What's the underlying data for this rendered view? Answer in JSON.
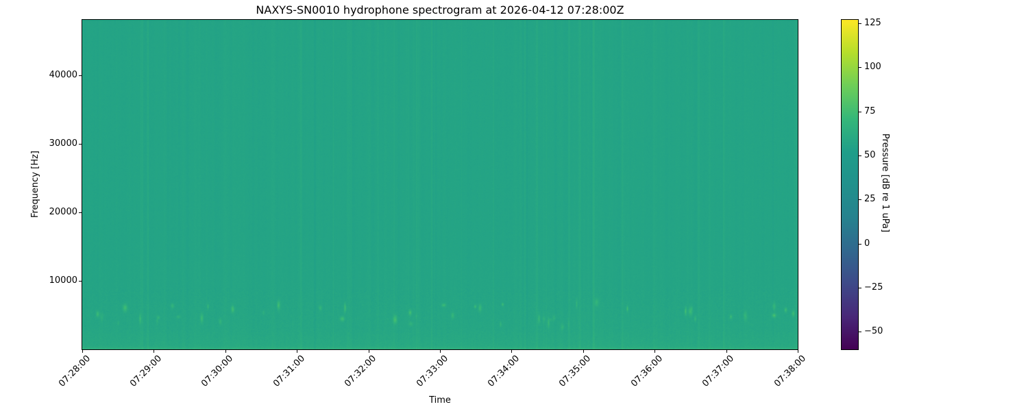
{
  "page": {
    "background": "#ffffff"
  },
  "chart_data": {
    "type": "heatmap",
    "title": "NAXYS-SN0010 hydrophone spectrogram at 2026-04-12 07:28:00Z",
    "xlabel": "Time",
    "ylabel": "Frequency [Hz]",
    "grid": false,
    "x_tick_labels": [
      "07:28:00",
      "07:29:00",
      "07:30:00",
      "07:31:00",
      "07:32:00",
      "07:33:00",
      "07:34:00",
      "07:35:00",
      "07:36:00",
      "07:37:00",
      "07:38:00"
    ],
    "y_tick_values": [
      10000,
      20000,
      30000,
      40000
    ],
    "y_axis_range_hz": [
      0,
      48100
    ],
    "x_axis_range": [
      "07:28:00",
      "07:38:00"
    ],
    "colorbar": {
      "label": "Pressure [dB re 1 uPa]",
      "tick_values": [
        125,
        100,
        75,
        50,
        25,
        0,
        -25,
        -50
      ],
      "vmin": -60,
      "vmax": 127,
      "colormap": "viridis",
      "colormap_stops": [
        {
          "t": 0.0,
          "hex": "#440154"
        },
        {
          "t": 0.1,
          "hex": "#482878"
        },
        {
          "t": 0.2,
          "hex": "#3e4a89"
        },
        {
          "t": 0.3,
          "hex": "#31688e"
        },
        {
          "t": 0.4,
          "hex": "#26828e"
        },
        {
          "t": 0.5,
          "hex": "#21918c"
        },
        {
          "t": 0.6,
          "hex": "#1f9e89"
        },
        {
          "t": 0.7,
          "hex": "#35b779"
        },
        {
          "t": 0.8,
          "hex": "#6ece58"
        },
        {
          "t": 0.9,
          "hex": "#b5de2b"
        },
        {
          "t": 1.0,
          "hex": "#fde725"
        }
      ]
    },
    "heatmap_model": {
      "seed": 1337,
      "base_db": 56.8,
      "band_below_hz": 13000,
      "band_boost_db": 0.5,
      "lowfreq_ramp_hz": 9000,
      "lowfreq_ramp_db": 1.8,
      "deep_ramp_hz": 3000,
      "deep_ramp_db": 1.6,
      "bottom_rows": 3,
      "bottom_boost_db": 2.8,
      "bottom_speckle_rows": 5,
      "bottom_speckle_db": 1.1,
      "column_noise_db": 0.9,
      "pixel_noise_db": 0.55,
      "lowfreq_pixel_noise_db": 1.0,
      "bright_column_events": 34,
      "bright_column_db": [
        1.2,
        3.6
      ],
      "edge_left_cols": 3,
      "edge_left_db": 1.8,
      "edge_right_cols": 6,
      "edge_right_db": 2.2,
      "blip_count": 42,
      "blip_freq_hz": [
        3400,
        7200
      ],
      "blip_db": [
        5,
        19
      ],
      "notable_blips": [
        {
          "col": 22,
          "row": 429,
          "db": 16
        },
        {
          "col": 201,
          "row": 440,
          "db": 10
        },
        {
          "col": 478,
          "row": 427,
          "db": 18
        },
        {
          "col": 540,
          "row": 431,
          "db": 13
        },
        {
          "col": 700,
          "row": 448,
          "db": 9
        },
        {
          "col": 1037,
          "row": 428,
          "db": 16
        }
      ]
    }
  }
}
